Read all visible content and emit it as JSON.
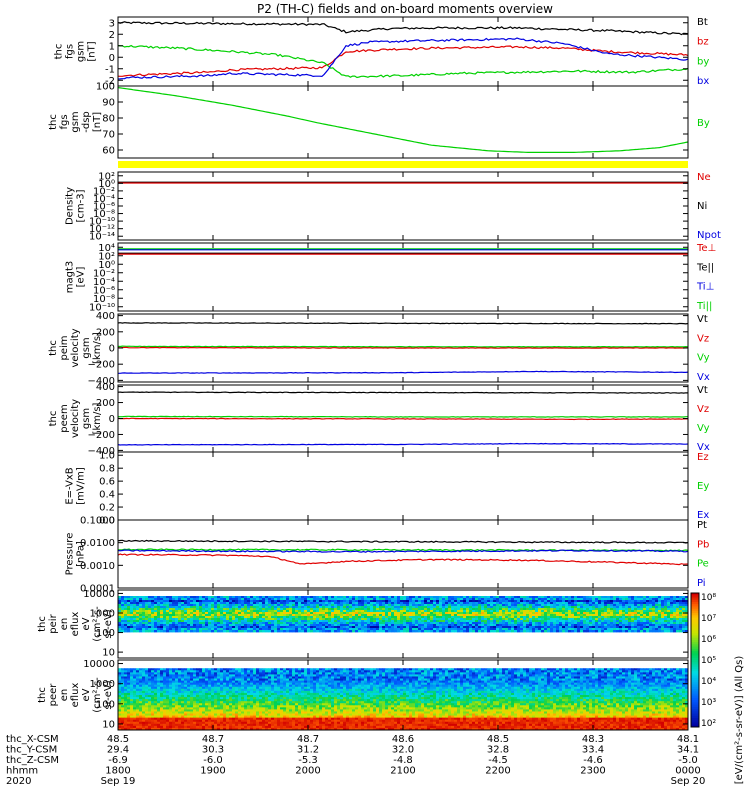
{
  "title": "P2 (TH-C) fields and on-board moments overview",
  "colors": {
    "black": "#000000",
    "red": "#e00000",
    "green": "#00d000",
    "blue": "#0000e0",
    "magenta": "#ff00ff",
    "yellow": "#ffff00"
  },
  "chart_data": [
    {
      "id": "p1",
      "type": "line",
      "ylabel": [
        "thc",
        "fgs",
        "gsm",
        "[nT]"
      ],
      "ylim": [
        -2.5,
        3.5
      ],
      "yticks": [
        "3",
        "2",
        "1",
        "0",
        "-1",
        "-2"
      ],
      "ytick_values": [
        3,
        2,
        1,
        0,
        -1,
        -2
      ],
      "legend": [
        {
          "name": "Bt",
          "color": "black"
        },
        {
          "name": "bz",
          "color": "red"
        },
        {
          "name": "by",
          "color": "green"
        },
        {
          "name": "bx",
          "color": "blue"
        }
      ],
      "series": [
        {
          "name": "Bt",
          "color": "black",
          "x": [
            0,
            0.36,
            0.4,
            0.48,
            0.56,
            0.7,
            0.86,
            1
          ],
          "y": [
            3.0,
            2.85,
            2.2,
            2.5,
            2.55,
            2.55,
            2.3,
            2.0
          ]
        },
        {
          "name": "bz",
          "color": "red",
          "x": [
            0,
            0.16,
            0.2,
            0.28,
            0.36,
            0.4,
            0.48,
            0.56,
            0.7,
            0.78,
            0.86,
            1
          ],
          "y": [
            -1.6,
            -1.3,
            -1.1,
            -1.0,
            -0.9,
            0.5,
            0.7,
            0.8,
            0.9,
            0.8,
            0.5,
            0.2
          ]
        },
        {
          "name": "by",
          "color": "green",
          "x": [
            0,
            0.1,
            0.2,
            0.28,
            0.36,
            0.4,
            0.5,
            0.6,
            0.7,
            0.8,
            0.9,
            1
          ],
          "y": [
            1.0,
            0.8,
            0.5,
            0.2,
            -0.5,
            -1.7,
            -1.6,
            -1.4,
            -1.3,
            -1.2,
            -1.3,
            -1.0
          ]
        },
        {
          "name": "bx",
          "color": "blue",
          "x": [
            0,
            0.16,
            0.2,
            0.28,
            0.36,
            0.4,
            0.44,
            0.5,
            0.6,
            0.7,
            0.78,
            0.86,
            1
          ],
          "y": [
            -1.8,
            -1.6,
            -1.4,
            -1.5,
            -1.6,
            1.0,
            1.3,
            1.4,
            1.5,
            1.6,
            1.2,
            0.3,
            -0.2
          ]
        }
      ]
    },
    {
      "id": "p2",
      "type": "line",
      "ylabel": [
        "thc",
        "fgs",
        "gsm",
        "-dsp",
        "[nT]"
      ],
      "ylim": [
        55,
        100
      ],
      "yticks": [
        "100",
        "90",
        "80",
        "70",
        "60"
      ],
      "ytick_values": [
        100,
        90,
        80,
        70,
        60
      ],
      "legend": [
        {
          "name": "By",
          "color": "green"
        }
      ],
      "series": [
        {
          "name": "By",
          "color": "green",
          "x": [
            0,
            0.1,
            0.2,
            0.3,
            0.35,
            0.45,
            0.55,
            0.65,
            0.72,
            0.8,
            0.88,
            0.95,
            1
          ],
          "y": [
            99,
            94,
            88,
            81,
            77,
            70,
            63,
            59.5,
            58.5,
            58.5,
            59.5,
            61.5,
            65
          ]
        }
      ]
    },
    {
      "id": "p3",
      "type": "line",
      "ylabel": [
        "Density",
        "[cm-3]"
      ],
      "yticks": [
        "10²",
        "10⁰",
        "10⁻²",
        "10⁻⁴",
        "10⁻⁶",
        "10⁻⁸",
        "10⁻¹⁰",
        "10⁻¹²",
        "10⁻¹⁴"
      ],
      "ytick_values": [
        2,
        0,
        -2,
        -4,
        -6,
        -8,
        -10,
        -12,
        -14
      ],
      "ylim": [
        -15,
        3
      ],
      "legend": [
        {
          "name": "Ne",
          "color": "red"
        },
        {
          "name": "Ni",
          "color": "black"
        },
        {
          "name": "Npot",
          "color": "blue"
        }
      ],
      "series": [
        {
          "name": "Ni",
          "color": "black",
          "x": [
            0,
            1
          ],
          "y": [
            0.3,
            0.3
          ]
        },
        {
          "name": "Ne",
          "color": "red",
          "x": [
            0,
            1
          ],
          "y": [
            0.1,
            0.1
          ]
        }
      ]
    },
    {
      "id": "p4",
      "type": "line",
      "ylabel": [
        "magt3",
        "[eV]"
      ],
      "yticks": [
        "10⁴",
        "10²",
        "10⁰",
        "10⁻²",
        "10⁻⁴",
        "10⁻⁶",
        "10⁻⁸",
        "10⁻¹⁰"
      ],
      "ytick_values": [
        4,
        2,
        0,
        -2,
        -4,
        -6,
        -8,
        -10
      ],
      "ylim": [
        -11,
        5
      ],
      "legend": [
        {
          "name": "Te⊥",
          "color": "red"
        },
        {
          "name": "Te||",
          "color": "black"
        },
        {
          "name": "Ti⊥",
          "color": "blue"
        },
        {
          "name": "Ti||",
          "color": "green"
        }
      ],
      "series": [
        {
          "name": "Ti||",
          "color": "green",
          "x": [
            0,
            1
          ],
          "y": [
            3.6,
            3.6
          ]
        },
        {
          "name": "Ti⊥",
          "color": "blue",
          "x": [
            0,
            1
          ],
          "y": [
            3.4,
            3.4
          ]
        },
        {
          "name": "Te||",
          "color": "black",
          "x": [
            0,
            1
          ],
          "y": [
            2.6,
            2.6
          ]
        },
        {
          "name": "Te⊥",
          "color": "red",
          "x": [
            0,
            1
          ],
          "y": [
            2.4,
            2.4
          ]
        }
      ]
    },
    {
      "id": "p5",
      "type": "line",
      "ylabel": [
        "thc",
        "peim",
        "velocity",
        "gsm",
        "[km/s]"
      ],
      "ylim": [
        -420,
        420
      ],
      "yticks": [
        "400",
        "200",
        "0",
        "−200",
        "−400"
      ],
      "ytick_values": [
        400,
        200,
        0,
        -200,
        -400
      ],
      "legend": [
        {
          "name": "Vt",
          "color": "black"
        },
        {
          "name": "Vz",
          "color": "red"
        },
        {
          "name": "Vy",
          "color": "green"
        },
        {
          "name": "Vx",
          "color": "blue"
        }
      ],
      "series": [
        {
          "name": "Vt",
          "color": "black",
          "x": [
            0,
            0.5,
            1
          ],
          "y": [
            310,
            305,
            300
          ]
        },
        {
          "name": "Vy",
          "color": "green",
          "x": [
            0,
            0.5,
            1
          ],
          "y": [
            20,
            15,
            15
          ]
        },
        {
          "name": "Vz",
          "color": "red",
          "x": [
            0,
            0.5,
            1
          ],
          "y": [
            5,
            0,
            0
          ]
        },
        {
          "name": "Vx",
          "color": "blue",
          "x": [
            0,
            0.5,
            0.72,
            1
          ],
          "y": [
            -310,
            -305,
            -290,
            -300
          ]
        }
      ]
    },
    {
      "id": "p6",
      "type": "line",
      "ylabel": [
        "thc",
        "peem",
        "velocity",
        "gsm",
        "[km/s]"
      ],
      "ylim": [
        -420,
        420
      ],
      "yticks": [
        "400",
        "200",
        "0",
        "−200",
        "−400"
      ],
      "ytick_values": [
        400,
        200,
        0,
        -200,
        -400
      ],
      "legend": [
        {
          "name": "Vt",
          "color": "black"
        },
        {
          "name": "Vz",
          "color": "red"
        },
        {
          "name": "Vy",
          "color": "green"
        },
        {
          "name": "Vx",
          "color": "blue"
        }
      ],
      "series": [
        {
          "name": "Vt",
          "color": "black",
          "x": [
            0,
            0.5,
            1
          ],
          "y": [
            330,
            325,
            320
          ]
        },
        {
          "name": "Vy",
          "color": "green",
          "x": [
            0,
            0.5,
            1
          ],
          "y": [
            25,
            20,
            20
          ]
        },
        {
          "name": "Vz",
          "color": "red",
          "x": [
            0,
            0.5,
            0.8,
            1
          ],
          "y": [
            0,
            -5,
            -10,
            -5
          ]
        },
        {
          "name": "Vx",
          "color": "blue",
          "x": [
            0,
            0.5,
            0.72,
            1
          ],
          "y": [
            -330,
            -325,
            -315,
            -320
          ]
        }
      ]
    },
    {
      "id": "p7",
      "type": "line",
      "ylabel": [
        "E=-VxB",
        "[mV/m]"
      ],
      "ylim": [
        0,
        1.05
      ],
      "yticks": [
        "1.0",
        "0.8",
        "0.6",
        "0.4",
        "0.2",
        "0.0"
      ],
      "ytick_values": [
        1.0,
        0.8,
        0.6,
        0.4,
        0.2,
        0.0
      ],
      "legend": [
        {
          "name": "Ez",
          "color": "red"
        },
        {
          "name": "Ey",
          "color": "green"
        },
        {
          "name": "Ex",
          "color": "blue"
        }
      ],
      "series": []
    },
    {
      "id": "p8",
      "type": "line",
      "log": true,
      "ylabel": [
        "Pressure",
        "[nPa]"
      ],
      "ylim": [
        0.0001,
        0.1
      ],
      "yticks": [
        "0.1000",
        "0.0100",
        "0.0010",
        "0.0001"
      ],
      "ytick_values": [
        0.1,
        0.01,
        0.001,
        0.0001
      ],
      "legend": [
        {
          "name": "Pt",
          "color": "black"
        },
        {
          "name": "Pb",
          "color": "red"
        },
        {
          "name": "Pe",
          "color": "green"
        },
        {
          "name": "Pi",
          "color": "blue"
        }
      ],
      "series": [
        {
          "name": "Pt",
          "color": "black",
          "x": [
            0,
            0.5,
            1
          ],
          "y": [
            0.012,
            0.011,
            0.01
          ]
        },
        {
          "name": "Pe",
          "color": "green",
          "x": [
            0,
            0.5,
            1
          ],
          "y": [
            0.005,
            0.0048,
            0.0045
          ]
        },
        {
          "name": "Pi",
          "color": "blue",
          "x": [
            0,
            0.2,
            0.4,
            0.6,
            0.8,
            1
          ],
          "y": [
            0.0045,
            0.0042,
            0.004,
            0.0042,
            0.0045,
            0.0042
          ]
        },
        {
          "name": "Pb",
          "color": "red",
          "x": [
            0,
            0.18,
            0.26,
            0.32,
            0.4,
            0.55,
            0.7,
            0.85,
            1
          ],
          "y": [
            0.003,
            0.0028,
            0.0025,
            0.0011,
            0.0015,
            0.0018,
            0.0017,
            0.0014,
            0.0011
          ]
        }
      ]
    },
    {
      "id": "p9",
      "type": "heatmap",
      "ylabel": [
        "thc",
        "peir",
        "en",
        "eflux",
        "eV",
        "(cm²-s-",
        "sr-eV)"
      ],
      "ylim": [
        5,
        15000
      ],
      "yticks": [
        "10000",
        "1000",
        "100",
        "10"
      ],
      "ytick_values": [
        10000,
        1000,
        100,
        10
      ],
      "band": "ion"
    },
    {
      "id": "p10",
      "type": "heatmap",
      "ylabel": [
        "thc",
        "peer",
        "en",
        "eflux",
        "eV",
        "(cm²-s-",
        "sr-eV)"
      ],
      "ylim": [
        5,
        15000
      ],
      "yticks": [
        "10000",
        "1000",
        "100",
        "10"
      ],
      "ytick_values": [
        10000,
        1000,
        100,
        10
      ],
      "band": "electron"
    }
  ],
  "colorbar": {
    "ticks": [
      "10⁸",
      "10⁷",
      "10⁶",
      "10⁵",
      "10⁴",
      "10³",
      "10²"
    ],
    "label": "[eV/(cm²-s-sr-eV)] (All Qs)"
  },
  "xaxis": {
    "rows": [
      {
        "label": "thc_X-CSM",
        "values": [
          "48.5",
          "48.7",
          "48.7",
          "48.6",
          "48.5",
          "48.3",
          "48.1"
        ]
      },
      {
        "label": "thc_Y-CSM",
        "values": [
          "29.4",
          "30.3",
          "31.2",
          "32.0",
          "32.8",
          "33.4",
          "34.1"
        ]
      },
      {
        "label": "thc_Z-CSM",
        "values": [
          "-6.9",
          "-6.0",
          "-5.3",
          "-4.8",
          "-4.5",
          "-4.6",
          "-5.0"
        ]
      },
      {
        "label": "hhmm",
        "values": [
          "1800",
          "1900",
          "2000",
          "2100",
          "2200",
          "2300",
          "0000"
        ]
      },
      {
        "label": "2020",
        "values": [
          "Sep 19",
          "",
          "",
          "",
          "",
          "",
          "Sep 20"
        ]
      }
    ]
  }
}
